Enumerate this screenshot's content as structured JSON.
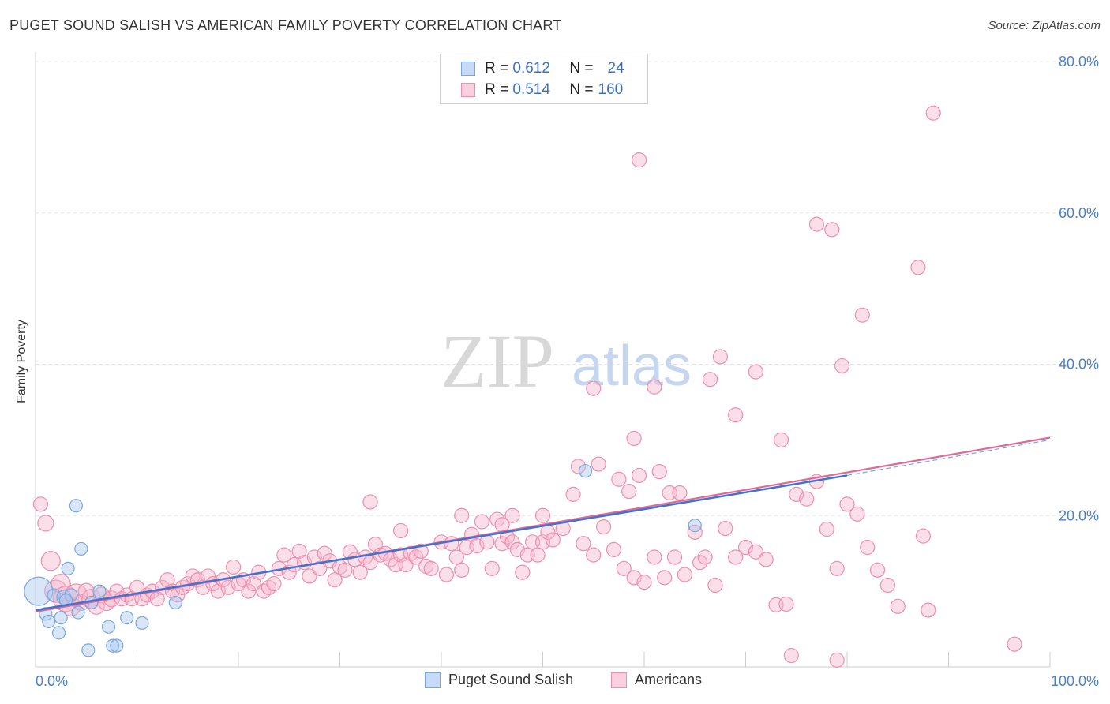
{
  "title": "PUGET SOUND SALISH VS AMERICAN FAMILY POVERTY CORRELATION CHART",
  "source": "Source: ZipAtlas.com",
  "watermark": {
    "zip": "ZIP",
    "atlas": "atlas"
  },
  "legend": {
    "rows": [
      {
        "r_label": "R =",
        "r_value": "0.612",
        "n_label": "N =",
        "n_value": "24",
        "color": "#a9c7f0",
        "border": "#7aa6e0"
      },
      {
        "r_label": "R =",
        "r_value": "0.514",
        "n_label": "N =",
        "n_value": "160",
        "color": "#f7b8cc",
        "border": "#ee8fae"
      }
    ]
  },
  "bottom_legend": [
    {
      "label": "Puget Sound Salish",
      "color": "#a9c7f0",
      "border": "#7aa6e0"
    },
    {
      "label": "Americans",
      "color": "#f7b8cc",
      "border": "#ee8fae"
    }
  ],
  "chart_data": {
    "type": "scatter",
    "ylabel": "Family Poverty",
    "xlabel": "",
    "x_tick_labels": [
      "0.0%",
      "100.0%"
    ],
    "y_tick_labels": [
      "20.0%",
      "40.0%",
      "60.0%",
      "80.0%"
    ],
    "y_ticks": [
      20,
      40,
      60,
      80
    ],
    "xlim": [
      0,
      100
    ],
    "ylim": [
      0,
      80
    ],
    "grid": true,
    "series": [
      {
        "name": "Puget Sound Salish",
        "color": "#7aa6e0",
        "fill": "#a9c7f0",
        "trend": {
          "x": [
            0,
            80
          ],
          "y": [
            7.5,
            25.3
          ],
          "dashed_to": [
            100,
            30.0
          ]
        },
        "points": [
          [
            0.3,
            10,
            18
          ],
          [
            1.0,
            7,
            8
          ],
          [
            1.3,
            6,
            8
          ],
          [
            1.8,
            9.5,
            8
          ],
          [
            2.3,
            4.5,
            8
          ],
          [
            2.5,
            6.5,
            8
          ],
          [
            2.8,
            9.2,
            9
          ],
          [
            3.2,
            13,
            8
          ],
          [
            3.5,
            9.5,
            8
          ],
          [
            4.0,
            21.3,
            8
          ],
          [
            4.2,
            7.2,
            8
          ],
          [
            4.5,
            15.6,
            8
          ],
          [
            5.2,
            2.2,
            8
          ],
          [
            5.5,
            8.5,
            8
          ],
          [
            6.3,
            10,
            8
          ],
          [
            7.2,
            5.3,
            8
          ],
          [
            7.6,
            2.8,
            8
          ],
          [
            8.0,
            2.8,
            8
          ],
          [
            9.0,
            6.5,
            8
          ],
          [
            10.5,
            5.8,
            8
          ],
          [
            13.8,
            8.5,
            8
          ],
          [
            54.2,
            25.9,
            8
          ],
          [
            65.0,
            18.7,
            8
          ],
          [
            3.0,
            8.8,
            8
          ]
        ]
      },
      {
        "name": "Americans",
        "color": "#ee8fae",
        "fill": "#f7b8cc",
        "trend": {
          "x": [
            0,
            100
          ],
          "y": [
            7.3,
            30.3
          ]
        },
        "points": [
          [
            0.5,
            21.5,
            9
          ],
          [
            1.0,
            19,
            10
          ],
          [
            1.5,
            14,
            12
          ],
          [
            2.0,
            10,
            14
          ],
          [
            2.5,
            11,
            12
          ],
          [
            3.0,
            9,
            16
          ],
          [
            3.5,
            8,
            12
          ],
          [
            4.0,
            9.5,
            14
          ],
          [
            4.5,
            8.5,
            10
          ],
          [
            5.0,
            10,
            10
          ],
          [
            5.5,
            9,
            12
          ],
          [
            6.0,
            8,
            10
          ],
          [
            6.5,
            9.5,
            10
          ],
          [
            7.0,
            8.5,
            10
          ],
          [
            7.5,
            9,
            10
          ],
          [
            8.0,
            10,
            9
          ],
          [
            8.5,
            9,
            9
          ],
          [
            9.0,
            9.5,
            9
          ],
          [
            9.5,
            9,
            9
          ],
          [
            10.0,
            10.5,
            9
          ],
          [
            10.5,
            9,
            9
          ],
          [
            11.0,
            9.5,
            9
          ],
          [
            11.5,
            10,
            9
          ],
          [
            12.0,
            9,
            9
          ],
          [
            12.5,
            10.5,
            9
          ],
          [
            13.0,
            11.5,
            9
          ],
          [
            13.5,
            10,
            9
          ],
          [
            14.0,
            9.5,
            9
          ],
          [
            14.5,
            10.5,
            9
          ],
          [
            15.0,
            11,
            9
          ],
          [
            15.5,
            12,
            9
          ],
          [
            16.0,
            11.5,
            9
          ],
          [
            16.5,
            10.5,
            9
          ],
          [
            17.0,
            12,
            9
          ],
          [
            17.5,
            11,
            9
          ],
          [
            18.0,
            10,
            9
          ],
          [
            18.5,
            11.5,
            9
          ],
          [
            19.0,
            10.5,
            9
          ],
          [
            19.5,
            13.2,
            9
          ],
          [
            20.0,
            11,
            9
          ],
          [
            20.5,
            11.5,
            9
          ],
          [
            21.0,
            10,
            9
          ],
          [
            21.5,
            11,
            9
          ],
          [
            22.0,
            12.5,
            9
          ],
          [
            22.5,
            10,
            9
          ],
          [
            23.0,
            10.5,
            9
          ],
          [
            23.5,
            11,
            9
          ],
          [
            24.0,
            13,
            9
          ],
          [
            24.5,
            14.8,
            9
          ],
          [
            25.0,
            12.5,
            9
          ],
          [
            25.5,
            13.5,
            9
          ],
          [
            26.0,
            15.3,
            9
          ],
          [
            26.5,
            13.8,
            9
          ],
          [
            27.0,
            12,
            9
          ],
          [
            27.5,
            14.5,
            9
          ],
          [
            28.0,
            13,
            9
          ],
          [
            28.5,
            15,
            9
          ],
          [
            29.0,
            14,
            9
          ],
          [
            29.5,
            11.5,
            9
          ],
          [
            30.0,
            13.2,
            9
          ],
          [
            30.5,
            12.8,
            9
          ],
          [
            31.0,
            15.2,
            9
          ],
          [
            31.5,
            14.2,
            9
          ],
          [
            32.0,
            12.5,
            9
          ],
          [
            32.5,
            14.5,
            9
          ],
          [
            33.0,
            13.8,
            9
          ],
          [
            33.5,
            16.2,
            9
          ],
          [
            34.0,
            14.8,
            9
          ],
          [
            34.5,
            15,
            9
          ],
          [
            35.0,
            14.2,
            9
          ],
          [
            35.5,
            13.5,
            9
          ],
          [
            36.0,
            14.8,
            9
          ],
          [
            36.5,
            13.5,
            9
          ],
          [
            37.0,
            15,
            9
          ],
          [
            37.5,
            14.5,
            9
          ],
          [
            38.0,
            15.3,
            9
          ],
          [
            38.5,
            13.3,
            9
          ],
          [
            39.0,
            13.0,
            9
          ],
          [
            40.0,
            16.5,
            9
          ],
          [
            40.5,
            12.2,
            9
          ],
          [
            41.0,
            16.3,
            9
          ],
          [
            41.5,
            14.5,
            9
          ],
          [
            42.0,
            12.8,
            9
          ],
          [
            42.5,
            15.8,
            9
          ],
          [
            43.0,
            17.5,
            9
          ],
          [
            43.5,
            16,
            9
          ],
          [
            44.0,
            19.2,
            9
          ],
          [
            44.5,
            16.5,
            9
          ],
          [
            45.0,
            13,
            9
          ],
          [
            45.5,
            19.5,
            9
          ],
          [
            46.0,
            16.3,
            9
          ],
          [
            46.5,
            17.2,
            9
          ],
          [
            47.0,
            16.5,
            9
          ],
          [
            47.5,
            15.5,
            9
          ],
          [
            48.0,
            12.5,
            9
          ],
          [
            48.5,
            14.8,
            9
          ],
          [
            49.0,
            16.5,
            9
          ],
          [
            49.5,
            14.8,
            9
          ],
          [
            50.0,
            16.5,
            9
          ],
          [
            50.5,
            17.8,
            9
          ],
          [
            51.0,
            16.8,
            9
          ],
          [
            52.0,
            18.3,
            9
          ],
          [
            53.0,
            22.8,
            9
          ],
          [
            53.5,
            26.5,
            9
          ],
          [
            54.0,
            16.3,
            9
          ],
          [
            55.0,
            14.8,
            9
          ],
          [
            56.0,
            18.5,
            9
          ],
          [
            57.0,
            15.5,
            9
          ],
          [
            58.0,
            13.0,
            9
          ],
          [
            59.0,
            11.8,
            9
          ],
          [
            60.0,
            11.2,
            9
          ],
          [
            61.0,
            14.5,
            9
          ],
          [
            62.0,
            11.8,
            9
          ],
          [
            63.0,
            14.5,
            9
          ],
          [
            64.0,
            12.2,
            9
          ],
          [
            65.0,
            17.8,
            9
          ],
          [
            65.5,
            13.8,
            9
          ],
          [
            66.0,
            14.5,
            9
          ],
          [
            67.0,
            10.8,
            9
          ],
          [
            68.0,
            18.3,
            9
          ],
          [
            69.0,
            14.5,
            9
          ],
          [
            70.0,
            15.8,
            9
          ],
          [
            71.0,
            15.2,
            9
          ],
          [
            72.0,
            14.2,
            9
          ],
          [
            73.0,
            8.2,
            9
          ],
          [
            74.0,
            8.3,
            9
          ],
          [
            75.0,
            22.8,
            9
          ],
          [
            76.0,
            22.2,
            9
          ],
          [
            77.0,
            24.5,
            9
          ],
          [
            78.0,
            18.2,
            9
          ],
          [
            79.0,
            13.0,
            9
          ],
          [
            80.0,
            21.5,
            9
          ],
          [
            81.0,
            20.2,
            9
          ],
          [
            82.0,
            15.8,
            9
          ],
          [
            83.0,
            12.8,
            9
          ],
          [
            84.0,
            10.8,
            9
          ],
          [
            85.0,
            8.0,
            9
          ],
          [
            55.5,
            26.8,
            9
          ],
          [
            57.5,
            24.8,
            9
          ],
          [
            58.5,
            23.2,
            9
          ],
          [
            59.5,
            25.3,
            9
          ],
          [
            61.5,
            25.8,
            9
          ],
          [
            62.5,
            23.0,
            9
          ],
          [
            63.5,
            23.0,
            9
          ],
          [
            50.0,
            20.0,
            9
          ],
          [
            47.0,
            20.0,
            9
          ],
          [
            46.0,
            18.8,
            9
          ],
          [
            42.0,
            20.0,
            9
          ],
          [
            36.0,
            18.0,
            9
          ],
          [
            33.0,
            21.8,
            9
          ],
          [
            55.0,
            36.8,
            9
          ],
          [
            59.0,
            30.2,
            9
          ],
          [
            61.0,
            37.0,
            9
          ],
          [
            66.5,
            38.0,
            9
          ],
          [
            67.5,
            41.0,
            9
          ],
          [
            69.0,
            33.3,
            9
          ],
          [
            71.0,
            39.0,
            9
          ],
          [
            73.5,
            30.0,
            9
          ],
          [
            79.5,
            39.8,
            9
          ],
          [
            81.5,
            46.5,
            9
          ],
          [
            87.0,
            52.8,
            9
          ],
          [
            77.0,
            58.5,
            9
          ],
          [
            78.5,
            57.8,
            9
          ],
          [
            59.5,
            67.0,
            9
          ],
          [
            88.5,
            73.2,
            9
          ],
          [
            79.0,
            0.9,
            9
          ],
          [
            74.5,
            1.5,
            9
          ],
          [
            96.5,
            3.0,
            9
          ],
          [
            88.0,
            7.5,
            9
          ],
          [
            87.5,
            17.3,
            9
          ]
        ]
      }
    ]
  }
}
